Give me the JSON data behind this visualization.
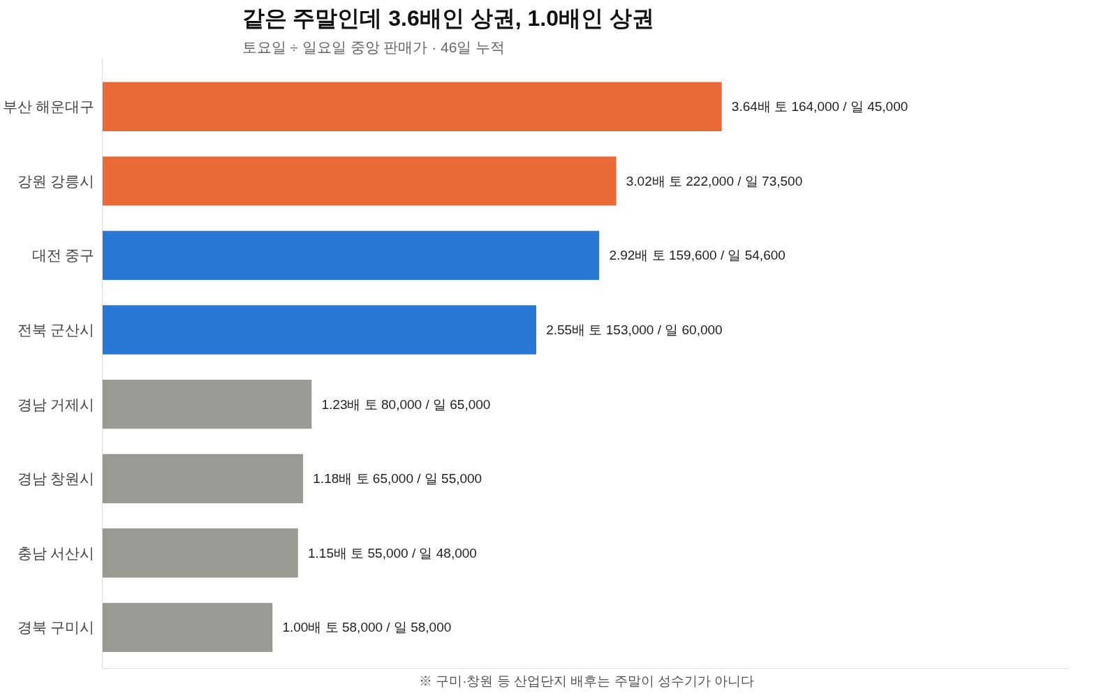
{
  "chart_data": {
    "type": "bar",
    "orientation": "horizontal",
    "title": "같은 주말인데 3.6배인 상권, 1.0배인 상권",
    "subtitle": "토요일 ÷ 일요일 중앙 판매가 · 46일 누적",
    "categories": [
      "부산 해운대구",
      "강원 강릉시",
      "대전 중구",
      "전북 군산시",
      "경남 거제시",
      "경남 창원시",
      "충남 서산시",
      "경북 구미시"
    ],
    "values": [
      3.64,
      3.02,
      2.92,
      2.55,
      1.23,
      1.18,
      1.15,
      1.0
    ],
    "colors": [
      "#e96a36",
      "#e96a36",
      "#2a78d6",
      "#2a78d6",
      "#9a9a94",
      "#9a9a94",
      "#9a9a94",
      "#9a9a94"
    ],
    "value_labels": [
      "3.64배    토 164,000 / 일 45,000",
      "3.02배    토 222,000 / 일 73,500",
      "2.92배    토 159,600 / 일 54,600",
      "2.55배    토 153,000 / 일 60,000",
      "1.23배    토 80,000 / 일 65,000",
      "1.18배    토 65,000 / 일 55,000",
      "1.15배    토 55,000 / 일 48,000",
      "1.00배    토 58,000 / 일 58,000"
    ],
    "annotations": [
      "※ 구미·창원 등 산업단지 배후는 주말이 성수기가 아니다"
    ],
    "grid": false
  }
}
